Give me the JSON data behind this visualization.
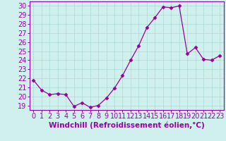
{
  "x": [
    0,
    1,
    2,
    3,
    4,
    5,
    6,
    7,
    8,
    9,
    10,
    11,
    12,
    13,
    14,
    15,
    16,
    17,
    18,
    19,
    20,
    21,
    22,
    23
  ],
  "y": [
    21.8,
    20.7,
    20.2,
    20.3,
    20.2,
    18.9,
    19.3,
    18.8,
    19.0,
    19.8,
    20.9,
    22.3,
    24.0,
    25.6,
    27.6,
    28.7,
    29.9,
    29.8,
    30.0,
    24.7,
    25.4,
    24.1,
    24.0,
    24.5
  ],
  "line_color": "#990099",
  "marker": "D",
  "marker_size": 2.5,
  "bg_color": "#cff0ec",
  "grid_color": "#b0ddd8",
  "xlabel": "Windchill (Refroidissement éolien,°C)",
  "xlabel_fontsize": 7.5,
  "tick_label_fontsize": 7,
  "ylim": [
    18.5,
    30.5
  ],
  "yticks": [
    19,
    20,
    21,
    22,
    23,
    24,
    25,
    26,
    27,
    28,
    29,
    30
  ],
  "xticks": [
    0,
    1,
    2,
    3,
    4,
    5,
    6,
    7,
    8,
    9,
    10,
    11,
    12,
    13,
    14,
    15,
    16,
    17,
    18,
    19,
    20,
    21,
    22,
    23
  ],
  "xlim": [
    -0.5,
    23.5
  ],
  "spine_color": "#9900aa",
  "tick_color": "#9900aa"
}
